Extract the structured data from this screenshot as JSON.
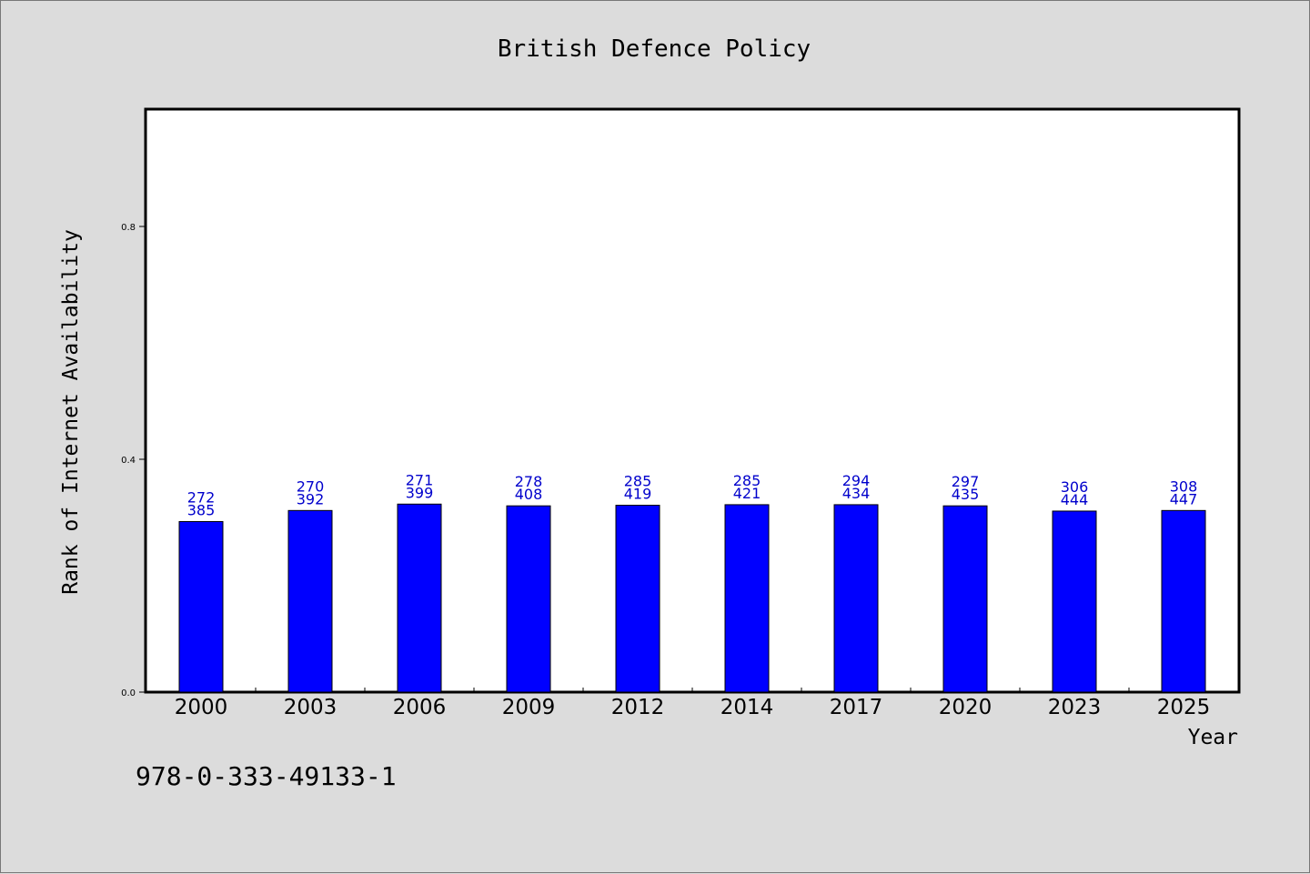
{
  "chart_data": {
    "type": "bar",
    "title": "British Defence Policy",
    "xlabel": "Year",
    "ylabel": "Rank of Internet Availability",
    "ylim": [
      0.0,
      1.0
    ],
    "yticks": [
      "0.0",
      "0.4",
      "0.8"
    ],
    "ytick_values": [
      0.0,
      0.4,
      0.8
    ],
    "grid": false,
    "categories": [
      "2000",
      "2003",
      "2006",
      "2009",
      "2012",
      "2014",
      "2017",
      "2020",
      "2023",
      "2025"
    ],
    "values": [
      0.293,
      0.312,
      0.323,
      0.32,
      0.321,
      0.322,
      0.322,
      0.32,
      0.311,
      0.312
    ],
    "annotations": [
      [
        "272",
        "385"
      ],
      [
        "270",
        "392"
      ],
      [
        "271",
        "399"
      ],
      [
        "278",
        "408"
      ],
      [
        "285",
        "419"
      ],
      [
        "285",
        "421"
      ],
      [
        "294",
        "434"
      ],
      [
        "297",
        "435"
      ],
      [
        "306",
        "444"
      ],
      [
        "308",
        "447"
      ]
    ],
    "colors": {
      "bar": "#0000ff",
      "label": "#0000cc"
    }
  },
  "footer": {
    "identifier": "978-0-333-49133-1"
  }
}
